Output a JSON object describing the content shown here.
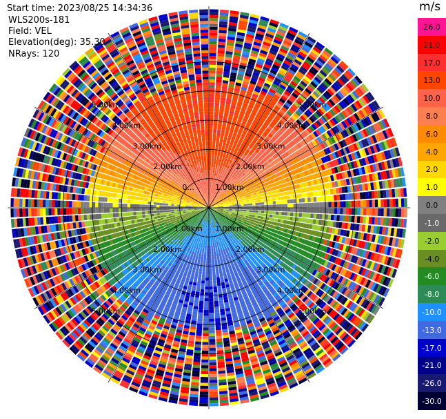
{
  "header": {
    "start_time": "Start time: 2023/08/25 14:34:36",
    "instrument": "WLS200s-181",
    "field": "Field: VEL",
    "elevation": "Elevation(deg): 35.30",
    "nrays": "NRays: 120"
  },
  "chart_data": {
    "type": "heatmap",
    "projection": "polar-ppi",
    "field": "VEL",
    "elevation_deg": 35.3,
    "nrays": 120,
    "range_rings_km": [
      1.0,
      2.0,
      3.0,
      4.0,
      5.0
    ],
    "ring_label_text": [
      "1.00km",
      "2.00km",
      "3.00km",
      "4.00km",
      "5.00km"
    ],
    "ring_label_top": [
      "0...",
      "2.00km",
      "3.00km",
      "4.00km",
      "5.00km"
    ],
    "approx_max_range_km": 6.9,
    "velocity_pattern": {
      "description_of_colors": "positive (warm) radial velocity to the north, negative (cool) to the south, near-zero along the east-west axis; noisy/random beyond ~4.3 km",
      "north_max_ms": 17.0,
      "south_min_ms": -13.0,
      "clean_range_limit_km": 4.3
    },
    "colorbar": {
      "title": "m/s",
      "ticks": [
        "26.0",
        "21.0",
        "17.0",
        "13.0",
        "10.0",
        "8.0",
        "6.0",
        "4.0",
        "2.0",
        "1.0",
        "0.0",
        "-1.0",
        "-2.0",
        "-4.0",
        "-6.0",
        "-8.0",
        "-10.0",
        "-13.0",
        "-17.0",
        "-21.0",
        "-26.0",
        "-30.0"
      ],
      "colors": [
        "#ff1493",
        "#ff0000",
        "#ff2f2f",
        "#ff4500",
        "#ff6347",
        "#ff7f50",
        "#ff8c00",
        "#ffa500",
        "#ffd700",
        "#ffff00",
        "#808080",
        "#696969",
        "#9acd32",
        "#6b8e23",
        "#228b22",
        "#2e8b57",
        "#1e90ff",
        "#4169e1",
        "#0000cd",
        "#00008b",
        "#191970",
        "#000033"
      ],
      "label_colors": [
        "#000000",
        "#000000",
        "#000000",
        "#000000",
        "#000000",
        "#000000",
        "#000000",
        "#000000",
        "#000000",
        "#000000",
        "#000000",
        "#ffffff",
        "#000000",
        "#000000",
        "#ffffff",
        "#ffffff",
        "#ffffff",
        "#ffffff",
        "#ffffff",
        "#ffffff",
        "#ffffff",
        "#ffffff"
      ]
    }
  }
}
